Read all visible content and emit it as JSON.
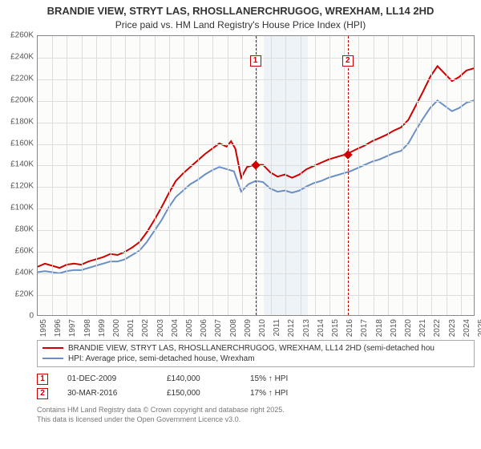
{
  "title": "BRANDIE VIEW, STRYT LAS, RHOSLLANERCHRUGOG, WREXHAM, LL14 2HD",
  "subtitle": "Price paid vs. HM Land Registry's House Price Index (HPI)",
  "chart": {
    "type": "line",
    "background_color": "#fcfcfa",
    "grid_color": "#dddddd",
    "border_color": "#888888",
    "band_color": "#e4ecf7",
    "x_start_year": 1995,
    "x_end_year": 2025,
    "years": [
      1995,
      1996,
      1997,
      1998,
      1999,
      2000,
      2001,
      2002,
      2003,
      2004,
      2005,
      2006,
      2007,
      2008,
      2009,
      2010,
      2011,
      2012,
      2013,
      2014,
      2015,
      2016,
      2017,
      2018,
      2019,
      2020,
      2021,
      2022,
      2023,
      2024,
      2025
    ],
    "y_min": 0,
    "y_max": 260000,
    "y_ticks": [
      0,
      20000,
      40000,
      60000,
      80000,
      100000,
      120000,
      140000,
      160000,
      180000,
      200000,
      220000,
      240000,
      260000
    ],
    "y_tick_labels": [
      "0",
      "£20K",
      "£40K",
      "£60K",
      "£80K",
      "£100K",
      "£120K",
      "£140K",
      "£160K",
      "£180K",
      "£200K",
      "£220K",
      "£240K",
      "£260K"
    ],
    "band_from": 2010.5,
    "band_to": 2013.5,
    "ref_lines": [
      {
        "id": "1",
        "x": 2009.92,
        "marker_y": 140000,
        "badge_y": 242000
      },
      {
        "id": "2",
        "x": 2016.25,
        "marker_y": 150000,
        "badge_y": 242000
      }
    ],
    "series": [
      {
        "name": "subject",
        "color": "#cc0000",
        "width": 2,
        "label": "BRANDIE VIEW, STRYT LAS, RHOSLLANERCHRUGOG, WREXHAM, LL14 2HD (semi-detached hou",
        "points": [
          [
            1995,
            45000
          ],
          [
            1995.5,
            48000
          ],
          [
            1996,
            46000
          ],
          [
            1996.5,
            44000
          ],
          [
            1997,
            47000
          ],
          [
            1997.5,
            48000
          ],
          [
            1998,
            47000
          ],
          [
            1998.5,
            50000
          ],
          [
            1999,
            52000
          ],
          [
            1999.5,
            54000
          ],
          [
            2000,
            57000
          ],
          [
            2000.5,
            56000
          ],
          [
            2001,
            59000
          ],
          [
            2001.5,
            63000
          ],
          [
            2002,
            68000
          ],
          [
            2002.5,
            77000
          ],
          [
            2003,
            88000
          ],
          [
            2003.5,
            100000
          ],
          [
            2004,
            113000
          ],
          [
            2004.5,
            125000
          ],
          [
            2005,
            132000
          ],
          [
            2005.5,
            138000
          ],
          [
            2006,
            144000
          ],
          [
            2006.5,
            150000
          ],
          [
            2007,
            155000
          ],
          [
            2007.5,
            160000
          ],
          [
            2008,
            157000
          ],
          [
            2008.3,
            162000
          ],
          [
            2008.6,
            155000
          ],
          [
            2009,
            128000
          ],
          [
            2009.4,
            138000
          ],
          [
            2009.92,
            140000
          ],
          [
            2010.5,
            140000
          ],
          [
            2011,
            133000
          ],
          [
            2011.5,
            129000
          ],
          [
            2012,
            131000
          ],
          [
            2012.5,
            128000
          ],
          [
            2013,
            131000
          ],
          [
            2013.5,
            136000
          ],
          [
            2014,
            139000
          ],
          [
            2014.5,
            142000
          ],
          [
            2015,
            145000
          ],
          [
            2015.5,
            147000
          ],
          [
            2016.25,
            150000
          ],
          [
            2017,
            155000
          ],
          [
            2017.5,
            158000
          ],
          [
            2018,
            162000
          ],
          [
            2018.5,
            165000
          ],
          [
            2019,
            168000
          ],
          [
            2019.5,
            172000
          ],
          [
            2020,
            175000
          ],
          [
            2020.5,
            182000
          ],
          [
            2021,
            195000
          ],
          [
            2021.5,
            208000
          ],
          [
            2022,
            222000
          ],
          [
            2022.5,
            232000
          ],
          [
            2023,
            225000
          ],
          [
            2023.5,
            218000
          ],
          [
            2024,
            222000
          ],
          [
            2024.5,
            228000
          ],
          [
            2025,
            230000
          ]
        ]
      },
      {
        "name": "hpi",
        "color": "#6a8fc5",
        "width": 2,
        "label": "HPI: Average price, semi-detached house, Wrexham",
        "points": [
          [
            1995,
            40000
          ],
          [
            1995.5,
            41000
          ],
          [
            1996,
            40000
          ],
          [
            1996.5,
            39000
          ],
          [
            1997,
            41000
          ],
          [
            1997.5,
            42000
          ],
          [
            1998,
            42000
          ],
          [
            1998.5,
            44000
          ],
          [
            1999,
            46000
          ],
          [
            1999.5,
            48000
          ],
          [
            2000,
            50000
          ],
          [
            2000.5,
            50000
          ],
          [
            2001,
            52000
          ],
          [
            2001.5,
            56000
          ],
          [
            2002,
            60000
          ],
          [
            2002.5,
            68000
          ],
          [
            2003,
            78000
          ],
          [
            2003.5,
            88000
          ],
          [
            2004,
            100000
          ],
          [
            2004.5,
            110000
          ],
          [
            2005,
            116000
          ],
          [
            2005.5,
            122000
          ],
          [
            2006,
            126000
          ],
          [
            2006.5,
            131000
          ],
          [
            2007,
            135000
          ],
          [
            2007.5,
            138000
          ],
          [
            2008,
            136000
          ],
          [
            2008.5,
            134000
          ],
          [
            2009,
            115000
          ],
          [
            2009.5,
            122000
          ],
          [
            2010,
            125000
          ],
          [
            2010.5,
            124000
          ],
          [
            2011,
            118000
          ],
          [
            2011.5,
            115000
          ],
          [
            2012,
            116000
          ],
          [
            2012.5,
            114000
          ],
          [
            2013,
            116000
          ],
          [
            2013.5,
            120000
          ],
          [
            2014,
            123000
          ],
          [
            2014.5,
            125000
          ],
          [
            2015,
            128000
          ],
          [
            2015.5,
            130000
          ],
          [
            2016,
            132000
          ],
          [
            2016.5,
            134000
          ],
          [
            2017,
            137000
          ],
          [
            2017.5,
            140000
          ],
          [
            2018,
            143000
          ],
          [
            2018.5,
            145000
          ],
          [
            2019,
            148000
          ],
          [
            2019.5,
            151000
          ],
          [
            2020,
            153000
          ],
          [
            2020.5,
            160000
          ],
          [
            2021,
            172000
          ],
          [
            2021.5,
            183000
          ],
          [
            2022,
            193000
          ],
          [
            2022.5,
            200000
          ],
          [
            2023,
            195000
          ],
          [
            2023.5,
            190000
          ],
          [
            2024,
            193000
          ],
          [
            2024.5,
            198000
          ],
          [
            2025,
            200000
          ]
        ]
      }
    ]
  },
  "legend": {
    "items": [
      {
        "color": "#cc0000",
        "label": "BRANDIE VIEW, STRYT LAS, RHOSLLANERCHRUGOG, WREXHAM, LL14 2HD (semi-detached hou"
      },
      {
        "color": "#6a8fc5",
        "label": "HPI: Average price, semi-detached house, Wrexham"
      }
    ]
  },
  "ref_rows": [
    {
      "id": "1",
      "date": "01-DEC-2009",
      "price": "£140,000",
      "pct": "15% ",
      "note": "HPI"
    },
    {
      "id": "2",
      "date": "30-MAR-2016",
      "price": "£150,000",
      "pct": "17% ",
      "note": "HPI"
    }
  ],
  "footer_line1": "Contains HM Land Registry data © Crown copyright and database right 2025.",
  "footer_line2": "This data is licensed under the Open Government Licence v3.0."
}
